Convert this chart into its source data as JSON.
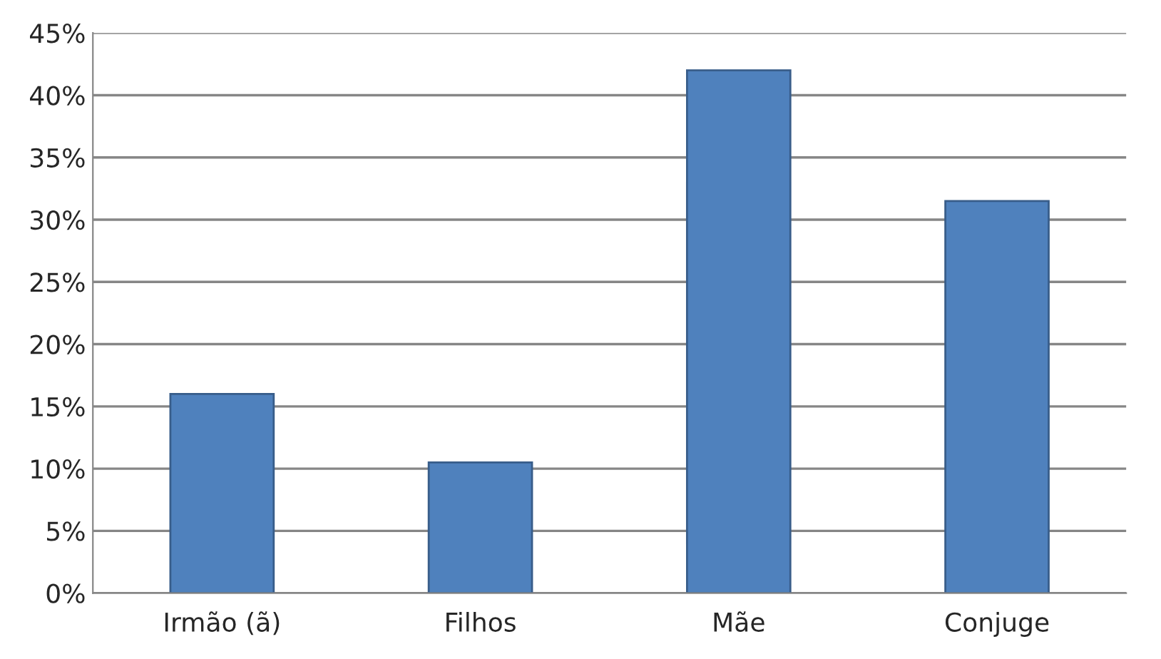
{
  "chart_data": {
    "type": "bar",
    "categories": [
      "Irmão (ã)",
      "Filhos",
      "Mãe",
      "Conjuge"
    ],
    "values": [
      16,
      10.5,
      42,
      31.5
    ],
    "color": "#4f81bd",
    "ylim": [
      0,
      45
    ],
    "yticks": [
      {
        "value": 0,
        "label": "0%"
      },
      {
        "value": 5,
        "label": "5%"
      },
      {
        "value": 10,
        "label": "10%"
      },
      {
        "value": 15,
        "label": "15%"
      },
      {
        "value": 20,
        "label": "20%"
      },
      {
        "value": 25,
        "label": "25%"
      },
      {
        "value": 30,
        "label": "30%"
      },
      {
        "value": 35,
        "label": "35%"
      },
      {
        "value": 40,
        "label": "40%"
      },
      {
        "value": 45,
        "label": "45%"
      }
    ],
    "grid": "y",
    "legend": false
  }
}
